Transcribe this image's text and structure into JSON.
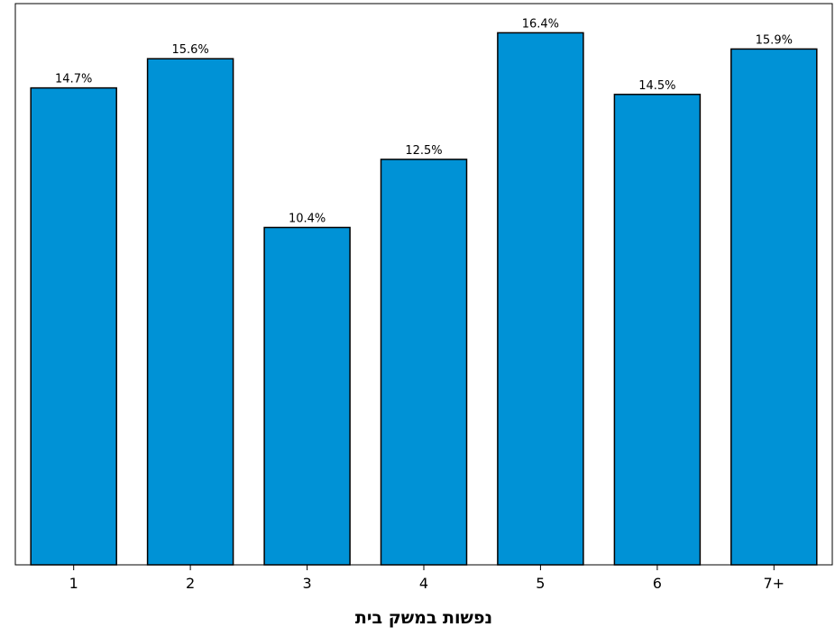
{
  "chart_data": {
    "type": "bar",
    "categories": [
      "1",
      "2",
      "3",
      "4",
      "5",
      "6",
      "7+"
    ],
    "values": [
      14.7,
      15.6,
      10.4,
      12.5,
      16.4,
      14.5,
      15.9
    ],
    "value_labels": [
      "14.7%",
      "15.6%",
      "10.4%",
      "12.5%",
      "16.4%",
      "14.5%",
      "15.9%"
    ],
    "title": "",
    "xlabel": "נפשות במשק בית",
    "ylabel": "",
    "ylim": [
      0,
      17.3
    ],
    "grid": false,
    "legend": "none",
    "colors": {
      "bar_fill": "#0092d6",
      "bar_stroke": "#000000",
      "frame": "#000000"
    }
  }
}
